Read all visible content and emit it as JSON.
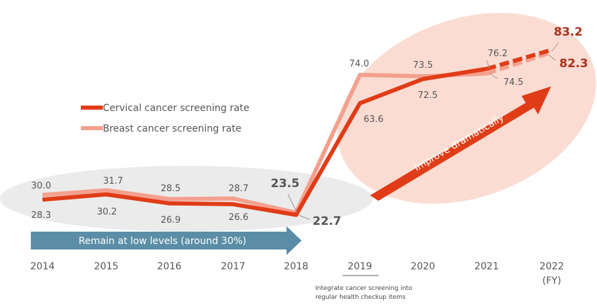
{
  "chart_data": {
    "type": "line",
    "categories": [
      "2014",
      "2015",
      "2016",
      "2017",
      "2018",
      "2019",
      "2020",
      "2021",
      "2022"
    ],
    "unit_label": "(FY)",
    "series": [
      {
        "name": "Cervical cancer screening rate",
        "color": "#e03c17",
        "values": [
          28.3,
          30.2,
          26.9,
          26.6,
          22.7,
          63.6,
          72.5,
          76.2,
          83.2
        ],
        "labels": [
          "28.3",
          "30.2",
          "26.9",
          "26.6",
          "22.7",
          "63.6",
          "72.5",
          "76.2",
          "83.2"
        ]
      },
      {
        "name": "Breast cancer screening rate",
        "color": "#f4a08e",
        "values": [
          30.0,
          31.7,
          28.5,
          28.7,
          23.5,
          74.0,
          73.5,
          74.5,
          82.3
        ],
        "labels": [
          "30.0",
          "31.7",
          "28.5",
          "28.7",
          "23.5",
          "74.0",
          "73.5",
          "74.5",
          "82.3"
        ]
      }
    ],
    "dashed_last_segment": true,
    "annotations": {
      "low_arrow": "Remain at low levels (around 30%)",
      "improve_arrow": "Improve dramatically",
      "note_line1": "Integrate cancer screening into",
      "note_line2": "regular health  checkup items"
    },
    "colors": {
      "low_arrow": "#5b8ea6",
      "improve_arrow": "#e03c17",
      "low_ellipse": "#ebebeb",
      "high_ellipse": "#fbdcd3"
    }
  }
}
